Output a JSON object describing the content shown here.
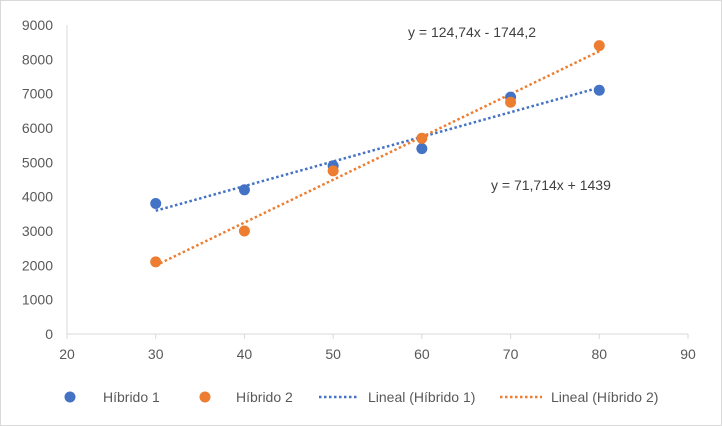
{
  "chart_data": {
    "type": "scatter",
    "title": "",
    "xlabel": "",
    "ylabel": "",
    "xlim": [
      20,
      90
    ],
    "ylim": [
      0,
      9000
    ],
    "x_ticks": [
      "20",
      "30",
      "40",
      "50",
      "60",
      "70",
      "80",
      "90"
    ],
    "y_ticks": [
      "0",
      "1000",
      "2000",
      "3000",
      "4000",
      "5000",
      "6000",
      "7000",
      "8000",
      "9000"
    ],
    "grid": false,
    "legend_position": "bottom",
    "series": [
      {
        "name": "Híbrido 1",
        "color": "#4472C4",
        "points": [
          {
            "x": 30,
            "y": 3800
          },
          {
            "x": 40,
            "y": 4200
          },
          {
            "x": 50,
            "y": 4900
          },
          {
            "x": 60,
            "y": 5400
          },
          {
            "x": 70,
            "y": 6900
          },
          {
            "x": 80,
            "y": 7100
          }
        ]
      },
      {
        "name": "Híbrido 2",
        "color": "#ED7D31",
        "points": [
          {
            "x": 30,
            "y": 2100
          },
          {
            "x": 40,
            "y": 3000
          },
          {
            "x": 50,
            "y": 4750
          },
          {
            "x": 60,
            "y": 5700
          },
          {
            "x": 70,
            "y": 6750
          },
          {
            "x": 80,
            "y": 8400
          }
        ]
      }
    ],
    "trendlines": [
      {
        "name": "Lineal (Híbrido 1)",
        "color": "#4472C4",
        "slope": 71.714,
        "intercept": 1439,
        "x_range": [
          30,
          80
        ],
        "equation": "y = 71,714x + 1439"
      },
      {
        "name": "Lineal (Híbrido 2)",
        "color": "#ED7D31",
        "slope": 124.74,
        "intercept": -1744.2,
        "x_range": [
          30,
          80
        ],
        "equation": "y = 124,74x - 1744,2"
      }
    ]
  }
}
